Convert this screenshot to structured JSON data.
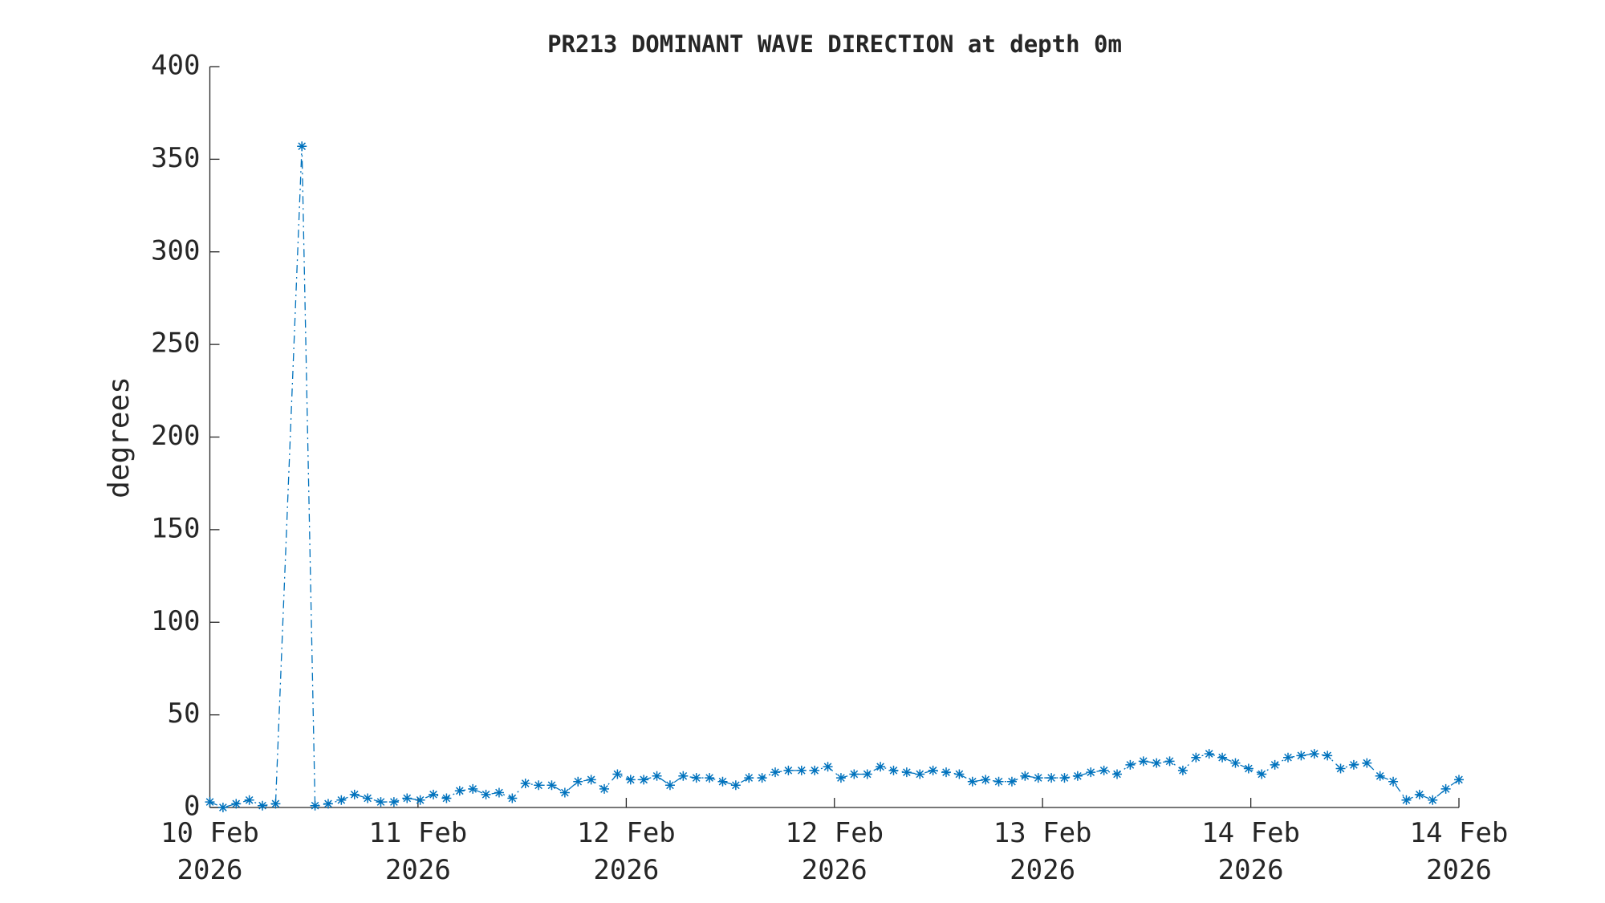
{
  "chart_data": {
    "type": "line",
    "title": "PR213 DOMINANT WAVE DIRECTION at depth 0m",
    "y_label": "degrees",
    "x": [
      0,
      1,
      2,
      3,
      4,
      5,
      7,
      8,
      9,
      10,
      11,
      12,
      13,
      14,
      15,
      16,
      17,
      18,
      19,
      20,
      21,
      22,
      23,
      24,
      25,
      26,
      27,
      28,
      29,
      30,
      31,
      32,
      33,
      34,
      35,
      36,
      37,
      38,
      39,
      40,
      41,
      42,
      43,
      44,
      45,
      46,
      47,
      48,
      49,
      50,
      51,
      52,
      53,
      54,
      55,
      56,
      57,
      58,
      59,
      60,
      61,
      62,
      63,
      64,
      65,
      66,
      67,
      68,
      69,
      70,
      71,
      72,
      73,
      74,
      75,
      76,
      77,
      78,
      79,
      80,
      81,
      82,
      83,
      84,
      85,
      86,
      87,
      88,
      89,
      90,
      91,
      92,
      93,
      94,
      95
    ],
    "series": [
      {
        "color": "#0072bd",
        "values": [
          3,
          0,
          2,
          4,
          1,
          2,
          357,
          1,
          2,
          4,
          7,
          5,
          3,
          3,
          5,
          4,
          7,
          5,
          9,
          10,
          7,
          8,
          5,
          13,
          12,
          12,
          8,
          14,
          15,
          10,
          18,
          15,
          15,
          17,
          12,
          17,
          16,
          16,
          14,
          12,
          16,
          16,
          19,
          20,
          20,
          20,
          22,
          16,
          18,
          18,
          22,
          20,
          19,
          18,
          20,
          19,
          18,
          14,
          15,
          14,
          14,
          17,
          16,
          16,
          16,
          17,
          19,
          20,
          18,
          23,
          25,
          24,
          25,
          20,
          27,
          29,
          27,
          24,
          21,
          18,
          23,
          27,
          28,
          29,
          28,
          21,
          23,
          24,
          17,
          14,
          4,
          7,
          4,
          10,
          15
        ]
      }
    ],
    "xlim": [
      0,
      95
    ],
    "xticks": [
      {
        "value": 0,
        "label": "10 Feb\n2026"
      },
      {
        "value": 15.83,
        "label": "11 Feb\n2026"
      },
      {
        "value": 31.67,
        "label": "12 Feb\n2026"
      },
      {
        "value": 47.5,
        "label": "12 Feb\n2026"
      },
      {
        "value": 63.33,
        "label": "13 Feb\n2026"
      },
      {
        "value": 79.17,
        "label": "14 Feb\n2026"
      },
      {
        "value": 95,
        "label": "14 Feb\n2026"
      }
    ],
    "ylim": [
      0,
      400
    ],
    "yticks": [
      0,
      50,
      100,
      150,
      200,
      250,
      300,
      350,
      400
    ]
  }
}
